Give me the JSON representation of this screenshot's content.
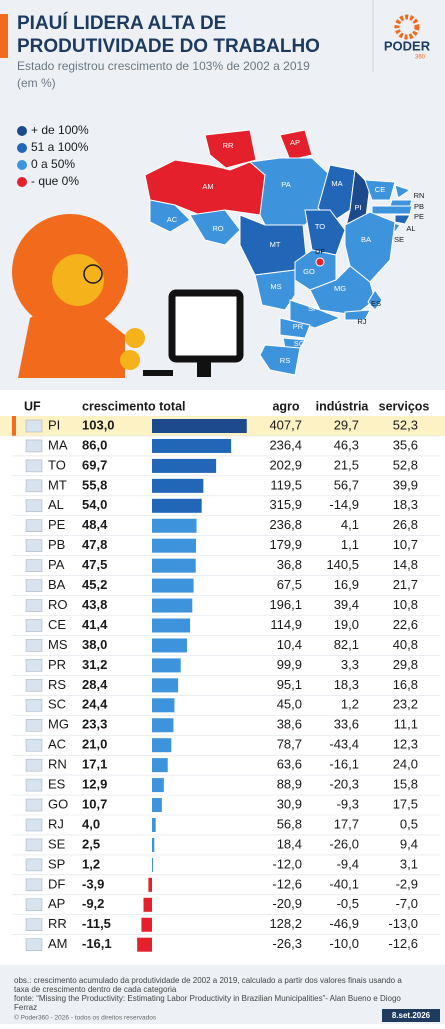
{
  "header": {
    "title_line1": "PIAUÍ LIDERA ALTA DE",
    "title_line2": "PRODUTIVIDADE DO TRABALHO",
    "subtitle_line1": "Estado registrou crescimento de 103% de 2002 a 2019",
    "subtitle_line2": "(em %)"
  },
  "logo": {
    "name": "PODER",
    "suffix": "360"
  },
  "legend": [
    {
      "label": "+ de 100%",
      "color": "#1c4a8c"
    },
    {
      "label": "51 a 100%",
      "color": "#2266b8"
    },
    {
      "label": "0 a 50%",
      "color": "#3d93dc"
    },
    {
      "label": "- que 0%",
      "color": "#e3202b"
    }
  ],
  "map": {
    "states": [
      {
        "label": "RR",
        "color": "#e3202b"
      },
      {
        "label": "AP",
        "color": "#e3202b"
      },
      {
        "label": "AM",
        "color": "#e3202b"
      },
      {
        "label": "AC",
        "color": "#3d93dc"
      },
      {
        "label": "PA",
        "color": "#3d93dc"
      },
      {
        "label": "RO",
        "color": "#3d93dc"
      },
      {
        "label": "MT",
        "color": "#2266b8"
      },
      {
        "label": "MA",
        "color": "#2266b8"
      },
      {
        "label": "PI",
        "color": "#1c4a8c"
      },
      {
        "label": "CE",
        "color": "#3d93dc"
      },
      {
        "label": "RN",
        "color": "#3d93dc"
      },
      {
        "label": "PB",
        "color": "#3d93dc"
      },
      {
        "label": "PE",
        "color": "#3d93dc"
      },
      {
        "label": "AL",
        "color": "#2266b8"
      },
      {
        "label": "SE",
        "color": "#3d93dc"
      },
      {
        "label": "BA",
        "color": "#3d93dc"
      },
      {
        "label": "TO",
        "color": "#2266b8"
      },
      {
        "label": "GO",
        "color": "#3d93dc"
      },
      {
        "label": "DF",
        "color": "#e3202b"
      },
      {
        "label": "MG",
        "color": "#3d93dc"
      },
      {
        "label": "ES",
        "color": "#3d93dc"
      },
      {
        "label": "RJ",
        "color": "#3d93dc"
      },
      {
        "label": "MS",
        "color": "#3d93dc"
      },
      {
        "label": "SP",
        "color": "#3d93dc"
      },
      {
        "label": "PR",
        "color": "#3d93dc"
      },
      {
        "label": "SC",
        "color": "#3d93dc"
      },
      {
        "label": "RS",
        "color": "#3d93dc"
      }
    ]
  },
  "table": {
    "columns": [
      "UF",
      "crescimento total",
      "agro",
      "indústria",
      "serviços"
    ],
    "rows": [
      {
        "uf": "PI",
        "total": {
          "value": 103.0,
          "label": "103,0"
        },
        "agro": "407,7",
        "industria": "29,7",
        "servicos": "52,3",
        "color": "#1c4a8c"
      },
      {
        "uf": "MA",
        "total": {
          "value": 86.0,
          "label": "86,0"
        },
        "agro": "236,4",
        "industria": "46,3",
        "servicos": "35,6",
        "color": "#2266b8"
      },
      {
        "uf": "TO",
        "total": {
          "value": 69.7,
          "label": "69,7"
        },
        "agro": "202,9",
        "industria": "21,5",
        "servicos": "52,8",
        "color": "#2266b8"
      },
      {
        "uf": "MT",
        "total": {
          "value": 55.8,
          "label": "55,8"
        },
        "agro": "119,5",
        "industria": "56,7",
        "servicos": "39,9",
        "color": "#2266b8"
      },
      {
        "uf": "AL",
        "total": {
          "value": 54.0,
          "label": "54,0"
        },
        "agro": "315,9",
        "industria": "-14,9",
        "servicos": "18,3",
        "color": "#2266b8"
      },
      {
        "uf": "PE",
        "total": {
          "value": 48.4,
          "label": "48,4"
        },
        "agro": "236,8",
        "industria": "4,1",
        "servicos": "26,8",
        "color": "#3d93dc"
      },
      {
        "uf": "PB",
        "total": {
          "value": 47.8,
          "label": "47,8"
        },
        "agro": "179,9",
        "industria": "1,1",
        "servicos": "10,7",
        "color": "#3d93dc"
      },
      {
        "uf": "PA",
        "total": {
          "value": 47.5,
          "label": "47,5"
        },
        "agro": "36,8",
        "industria": "140,5",
        "servicos": "14,8",
        "color": "#3d93dc"
      },
      {
        "uf": "BA",
        "total": {
          "value": 45.2,
          "label": "45,2"
        },
        "agro": "67,5",
        "industria": "16,9",
        "servicos": "21,7",
        "color": "#3d93dc"
      },
      {
        "uf": "RO",
        "total": {
          "value": 43.8,
          "label": "43,8"
        },
        "agro": "196,1",
        "industria": "39,4",
        "servicos": "10,8",
        "color": "#3d93dc"
      },
      {
        "uf": "CE",
        "total": {
          "value": 41.4,
          "label": "41,4"
        },
        "agro": "114,9",
        "industria": "19,0",
        "servicos": "22,6",
        "color": "#3d93dc"
      },
      {
        "uf": "MS",
        "total": {
          "value": 38.0,
          "label": "38,0"
        },
        "agro": "10,4",
        "industria": "82,1",
        "servicos": "40,8",
        "color": "#3d93dc"
      },
      {
        "uf": "PR",
        "total": {
          "value": 31.2,
          "label": "31,2"
        },
        "agro": "99,9",
        "industria": "3,3",
        "servicos": "29,8",
        "color": "#3d93dc"
      },
      {
        "uf": "RS",
        "total": {
          "value": 28.4,
          "label": "28,4"
        },
        "agro": "95,1",
        "industria": "18,3",
        "servicos": "16,8",
        "color": "#3d93dc"
      },
      {
        "uf": "SC",
        "total": {
          "value": 24.4,
          "label": "24,4"
        },
        "agro": "45,0",
        "industria": "1,2",
        "servicos": "23,2",
        "color": "#3d93dc"
      },
      {
        "uf": "MG",
        "total": {
          "value": 23.3,
          "label": "23,3"
        },
        "agro": "38,6",
        "industria": "33,6",
        "servicos": "11,1",
        "color": "#3d93dc"
      },
      {
        "uf": "AC",
        "total": {
          "value": 21.0,
          "label": "21,0"
        },
        "agro": "78,7",
        "industria": "-43,4",
        "servicos": "12,3",
        "color": "#3d93dc"
      },
      {
        "uf": "RN",
        "total": {
          "value": 17.1,
          "label": "17,1"
        },
        "agro": "63,6",
        "industria": "-16,1",
        "servicos": "24,0",
        "color": "#3d93dc"
      },
      {
        "uf": "ES",
        "total": {
          "value": 12.9,
          "label": "12,9"
        },
        "agro": "88,9",
        "industria": "-20,3",
        "servicos": "15,8",
        "color": "#3d93dc"
      },
      {
        "uf": "GO",
        "total": {
          "value": 10.7,
          "label": "10,7"
        },
        "agro": "30,9",
        "industria": "-9,3",
        "servicos": "17,5",
        "color": "#3d93dc"
      },
      {
        "uf": "RJ",
        "total": {
          "value": 4.0,
          "label": "4,0"
        },
        "agro": "56,8",
        "industria": "17,7",
        "servicos": "0,5",
        "color": "#3d93dc"
      },
      {
        "uf": "SE",
        "total": {
          "value": 2.5,
          "label": "2,5"
        },
        "agro": "18,4",
        "industria": "-26,0",
        "servicos": "9,4",
        "color": "#3d93dc"
      },
      {
        "uf": "SP",
        "total": {
          "value": 1.2,
          "label": "1,2"
        },
        "agro": "-12,0",
        "industria": "-9,4",
        "servicos": "3,1",
        "color": "#3d93dc"
      },
      {
        "uf": "DF",
        "total": {
          "value": -3.9,
          "label": "-3,9"
        },
        "agro": "-12,6",
        "industria": "-40,1",
        "servicos": "-2,9",
        "color": "#e3202b"
      },
      {
        "uf": "AP",
        "total": {
          "value": -9.2,
          "label": "-9,2"
        },
        "agro": "-20,9",
        "industria": "-0,5",
        "servicos": "-7,0",
        "color": "#e3202b"
      },
      {
        "uf": "RR",
        "total": {
          "value": -11.5,
          "label": "-11,5"
        },
        "agro": "128,2",
        "industria": "-46,9",
        "servicos": "-13,0",
        "color": "#e3202b"
      },
      {
        "uf": "AM",
        "total": {
          "value": -16.1,
          "label": "-16,1"
        },
        "agro": "-26,3",
        "industria": "-10,0",
        "servicos": "-12,6",
        "color": "#e3202b"
      }
    ]
  },
  "footer": {
    "obs_line1": "obs.: crescimento acumulado da produtividade de 2002 a 2019, calculado a partir dos valores finais usando a",
    "obs_line2": "taxa de crescimento dentro de cada categoria",
    "source_line1": "fonte: “Missing the Productivity: Estimating Labor Productivity in Brazilian Municipalities”- Alan Bueno e Diogo",
    "source_line2": "Ferraz",
    "copyright": "© Poder360 - 2026 - todos os direitos reservados",
    "date": "8.set.2026"
  }
}
